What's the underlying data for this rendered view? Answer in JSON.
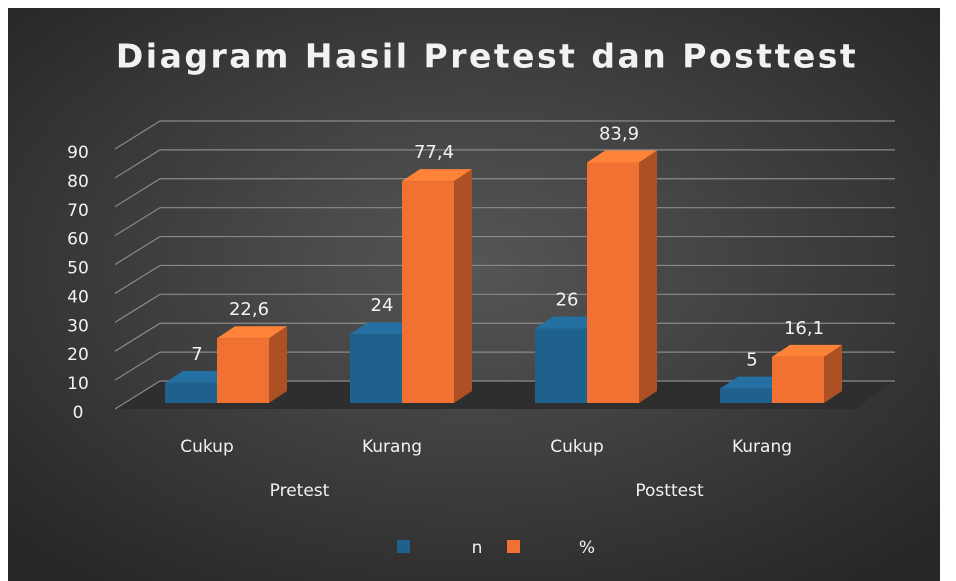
{
  "chart_data": {
    "type": "bar3d",
    "title": "Diagram  Hasil Pretest dan Posttest",
    "categories": [
      "Cukup",
      "Kurang",
      "Cukup",
      "Kurang"
    ],
    "groups": [
      {
        "name": "Pretest",
        "span": [
          0,
          1
        ]
      },
      {
        "name": "Posttest",
        "span": [
          2,
          3
        ]
      }
    ],
    "series": [
      {
        "name": "n",
        "color": "#1f618d",
        "values": [
          7,
          24,
          26,
          5
        ]
      },
      {
        "name": "%",
        "color": "#f07132",
        "values": [
          22.6,
          77.4,
          83.9,
          16.1
        ],
        "value_labels": [
          "22,6",
          "77,4",
          "83,9",
          "16,1"
        ]
      }
    ],
    "ylim": [
      0,
      90
    ],
    "yticks": [
      0,
      10,
      20,
      30,
      40,
      50,
      60,
      70,
      80,
      90
    ],
    "grid": true,
    "legend": "bottom"
  }
}
